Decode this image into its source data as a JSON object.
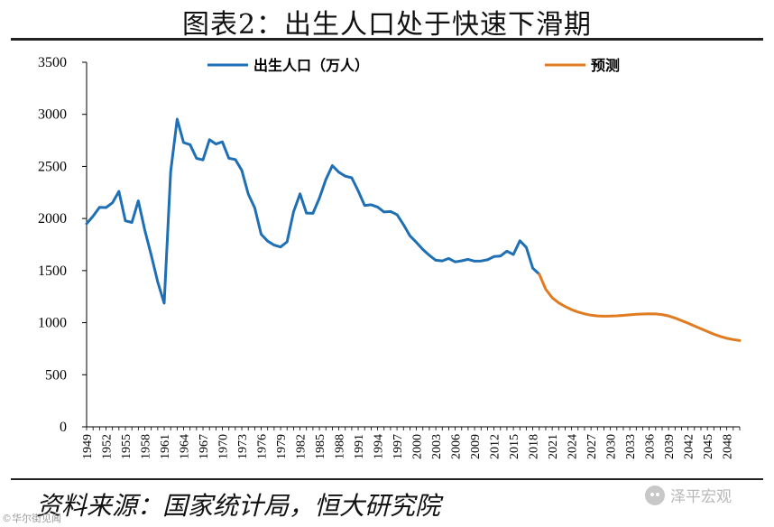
{
  "title": "图表2：出生人口处于快速下滑期",
  "source": "资料来源：国家统计局，恒大研究院",
  "watermark_left": "©华尔街见闻",
  "wechat_label": "泽平宏观",
  "chart_data": {
    "type": "line",
    "ylim": [
      0,
      3500
    ],
    "yticks": [
      0,
      500,
      1000,
      1500,
      2000,
      2500,
      3000,
      3500
    ],
    "xlim": [
      1949,
      2050
    ],
    "xticks": [
      1949,
      1952,
      1955,
      1958,
      1961,
      1964,
      1967,
      1970,
      1973,
      1976,
      1979,
      1982,
      1985,
      1988,
      1991,
      1994,
      1997,
      2000,
      2003,
      2006,
      2009,
      2012,
      2015,
      2018,
      2021,
      2024,
      2027,
      2030,
      2033,
      2036,
      2039,
      2042,
      2045,
      2048
    ],
    "legend": "top",
    "grid": false,
    "series": [
      {
        "name": "出生人口（万人）",
        "color": "#1f6fb5",
        "x": [
          1949,
          1950,
          1951,
          1952,
          1953,
          1954,
          1955,
          1956,
          1957,
          1958,
          1959,
          1960,
          1961,
          1962,
          1963,
          1964,
          1965,
          1966,
          1967,
          1968,
          1969,
          1970,
          1971,
          1972,
          1973,
          1974,
          1975,
          1976,
          1977,
          1978,
          1979,
          1980,
          1981,
          1982,
          1983,
          1984,
          1985,
          1986,
          1987,
          1988,
          1989,
          1990,
          1991,
          1992,
          1993,
          1994,
          1995,
          1996,
          1997,
          1998,
          1999,
          2000,
          2001,
          2002,
          2003,
          2004,
          2005,
          2006,
          2007,
          2008,
          2009,
          2010,
          2011,
          2012,
          2013,
          2014,
          2015,
          2016,
          2017,
          2018,
          2019
        ],
        "y": [
          1950,
          2023,
          2107,
          2105,
          2151,
          2260,
          1978,
          1962,
          2169,
          1889,
          1647,
          1389,
          1188,
          2451,
          2954,
          2729,
          2709,
          2577,
          2563,
          2757,
          2715,
          2736,
          2578,
          2566,
          2463,
          2235,
          2102,
          1849,
          1783,
          1745,
          1727,
          1776,
          2064,
          2237,
          2052,
          2050,
          2196,
          2374,
          2508,
          2445,
          2407,
          2391,
          2265,
          2125,
          2132,
          2110,
          2063,
          2067,
          2038,
          1942,
          1834,
          1771,
          1702,
          1647,
          1599,
          1593,
          1617,
          1584,
          1594,
          1608,
          1591,
          1592,
          1604,
          1635,
          1640,
          1687,
          1655,
          1786,
          1723,
          1523,
          1465
        ]
      },
      {
        "name": "预测",
        "color": "#e07b22",
        "x": [
          2019,
          2020,
          2021,
          2022,
          2023,
          2024,
          2025,
          2026,
          2027,
          2028,
          2029,
          2030,
          2031,
          2032,
          2033,
          2034,
          2035,
          2036,
          2037,
          2038,
          2039,
          2040,
          2041,
          2042,
          2043,
          2044,
          2045,
          2046,
          2047,
          2048,
          2049,
          2050
        ],
        "y": [
          1465,
          1320,
          1240,
          1190,
          1155,
          1125,
          1102,
          1085,
          1072,
          1065,
          1062,
          1063,
          1066,
          1070,
          1075,
          1080,
          1083,
          1085,
          1084,
          1078,
          1065,
          1045,
          1020,
          995,
          968,
          942,
          915,
          890,
          868,
          850,
          838,
          828
        ]
      }
    ]
  }
}
